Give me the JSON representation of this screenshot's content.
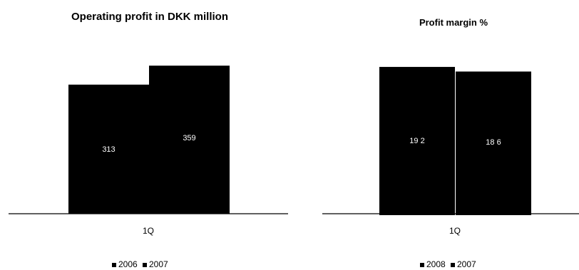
{
  "chart_data": [
    {
      "type": "bar",
      "title": "Operating profit in DKK million",
      "categories": [
        "1Q"
      ],
      "series": [
        {
          "name": "2006",
          "values": [
            313
          ],
          "label": "313"
        },
        {
          "name": "2007",
          "values": [
            359
          ],
          "label": "359"
        }
      ],
      "ylim": [
        0,
        380
      ],
      "grid": false,
      "legend": "bottom",
      "legend_entries": [
        "2006",
        "2007"
      ],
      "color": "#000000"
    },
    {
      "type": "bar",
      "title": "Profit margin %",
      "categories": [
        "1Q"
      ],
      "series": [
        {
          "name": "2008",
          "values": [
            19.2
          ],
          "label": "19 2"
        },
        {
          "name": "2007",
          "values": [
            18.6
          ],
          "label": "18 6"
        }
      ],
      "ylim": [
        0,
        20.3
      ],
      "grid": false,
      "legend": "bottom",
      "legend_entries": [
        "2008",
        "2007"
      ],
      "color": "#000000"
    }
  ]
}
